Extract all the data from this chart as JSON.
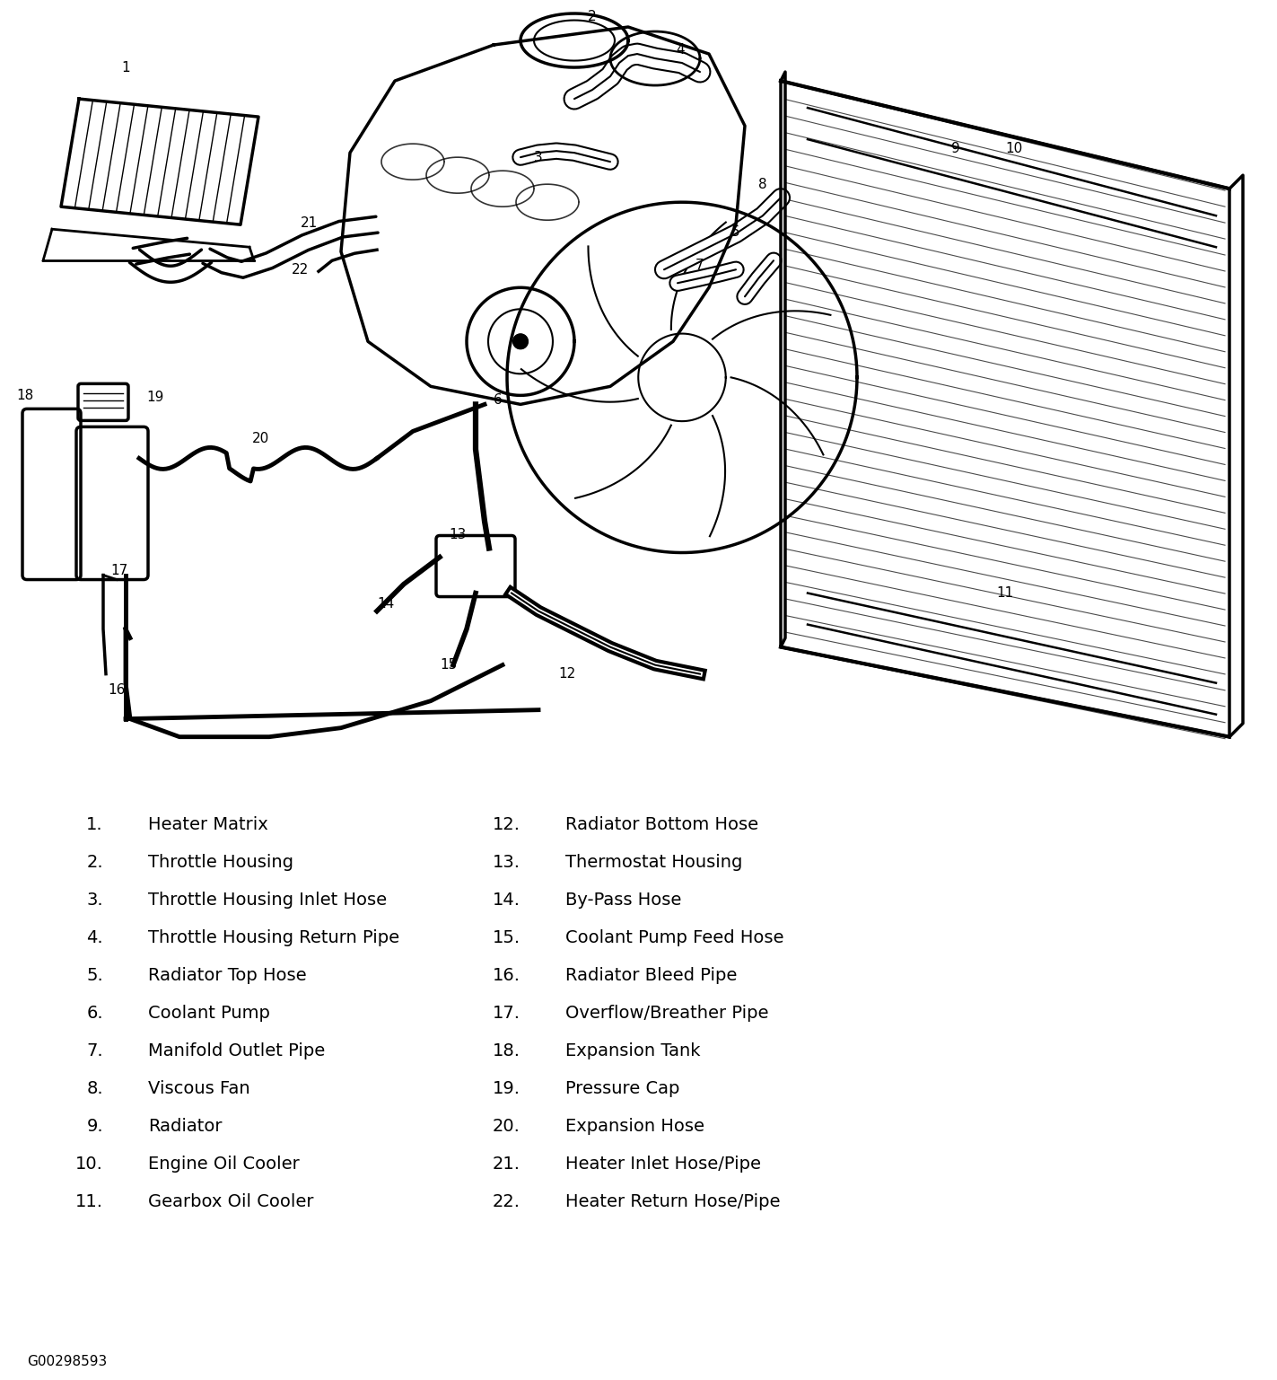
{
  "background_color": "#ffffff",
  "fig_width": 14.23,
  "fig_height": 15.37,
  "legend_items_col1": [
    [
      "1.",
      "Heater Matrix"
    ],
    [
      "2.",
      "Throttle Housing"
    ],
    [
      "3.",
      "Throttle Housing Inlet Hose"
    ],
    [
      "4.",
      "Throttle Housing Return Pipe"
    ],
    [
      "5.",
      "Radiator Top Hose"
    ],
    [
      "6.",
      "Coolant Pump"
    ],
    [
      "7.",
      "Manifold Outlet Pipe"
    ],
    [
      "8.",
      "Viscous Fan"
    ],
    [
      "9.",
      "Radiator"
    ],
    [
      "10.",
      "Engine Oil Cooler"
    ],
    [
      "11.",
      "Gearbox Oil Cooler"
    ]
  ],
  "legend_items_col2": [
    [
      "12.",
      "Radiator Bottom Hose"
    ],
    [
      "13.",
      "Thermostat Housing"
    ],
    [
      "14.",
      "By-Pass Hose"
    ],
    [
      "15.",
      "Coolant Pump Feed Hose"
    ],
    [
      "16.",
      "Radiator Bleed Pipe"
    ],
    [
      "17.",
      "Overflow/Breather Pipe"
    ],
    [
      "18.",
      "Expansion Tank"
    ],
    [
      "19.",
      "Pressure Cap"
    ],
    [
      "20.",
      "Expansion Hose"
    ],
    [
      "21.",
      "Heater Inlet Hose/Pipe"
    ],
    [
      "22.",
      "Heater Return Hose/Pipe"
    ]
  ],
  "watermark": "G00298593",
  "line_color": "#000000",
  "text_color": "#000000",
  "legend_fontsize": 14,
  "num_fontsize": 11,
  "watermark_fontsize": 11
}
